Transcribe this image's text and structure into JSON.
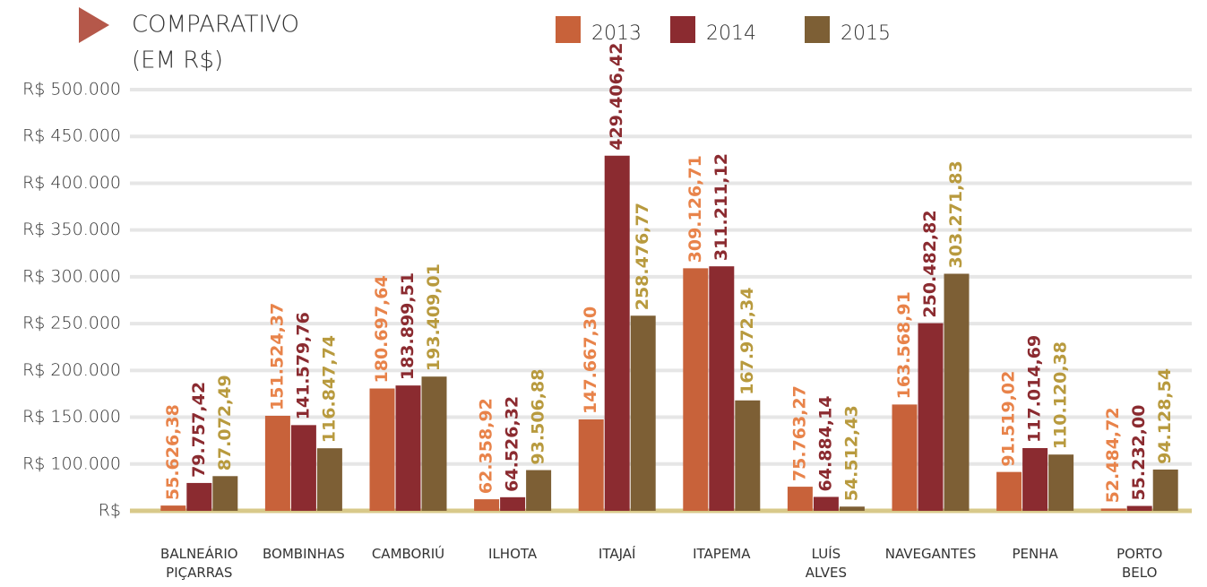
{
  "chart_data": {
    "type": "bar",
    "title": "COMPARATIVO",
    "subtitle": "(EM R$)",
    "categories": [
      "BALNEÁRIO PIÇARRAS",
      "BOMBINHAS",
      "CAMBORIÚ",
      "ILHOTA",
      "ITAJAÍ",
      "ITAPEMA",
      "LUÍS ALVES",
      "NAVEGANTES",
      "PENHA",
      "PORTO BELO"
    ],
    "series": [
      {
        "name": "2013",
        "color": "#c8623a",
        "label_color": "#e8834a",
        "values": [
          55626.38,
          151524.37,
          180697.64,
          62358.92,
          147667.3,
          309126.71,
          75763.27,
          163568.91,
          91519.02,
          52484.72
        ],
        "value_labels": [
          "55.626,38",
          "151.524,37",
          "180.697,64",
          "62.358,92",
          "147.667,30",
          "309.126,71",
          "75.763,27",
          "163.568,91",
          "91.519,02",
          "52.484,72"
        ]
      },
      {
        "name": "2014",
        "color": "#8b2b30",
        "label_color": "#8b2b30",
        "values": [
          79757.42,
          141579.76,
          183899.51,
          64526.32,
          429406.42,
          311211.12,
          64884.14,
          250482.82,
          117014.69,
          55232.0
        ],
        "value_labels": [
          "79.757,42",
          "141.579,76",
          "183.899,51",
          "64.526,32",
          "429.406,42",
          "311.211,12",
          "64.884,14",
          "250.482,82",
          "117.014,69",
          "55.232,00"
        ]
      },
      {
        "name": "2015",
        "color": "#7d5f35",
        "label_color": "#b89a3e",
        "values": [
          87072.49,
          116847.74,
          193409.01,
          93506.88,
          258476.77,
          167972.34,
          54512.43,
          303271.83,
          110120.38,
          94128.54
        ],
        "value_labels": [
          "87.072,49",
          "116.847,74",
          "193.409,01",
          "93.506,88",
          "258.476,77",
          "167.972,34",
          "54.512,43",
          "303.271,83",
          "110.120,38",
          "94.128,54"
        ]
      }
    ],
    "ylim": [
      50000,
      500000
    ],
    "yticks": [
      {
        "value": 50000,
        "label": "R$"
      },
      {
        "value": 100000,
        "label": "R$ 100.000"
      },
      {
        "value": 150000,
        "label": "R$ 150.000"
      },
      {
        "value": 200000,
        "label": "R$ 200.000"
      },
      {
        "value": 250000,
        "label": "R$ 250.000"
      },
      {
        "value": 300000,
        "label": "R$ 300.000"
      },
      {
        "value": 350000,
        "label": "R$ 350.000"
      },
      {
        "value": 400000,
        "label": "R$ 400.000"
      },
      {
        "value": 450000,
        "label": "R$ 450.000"
      },
      {
        "value": 500000,
        "label": "R$ 500.000"
      }
    ],
    "grid": true
  }
}
